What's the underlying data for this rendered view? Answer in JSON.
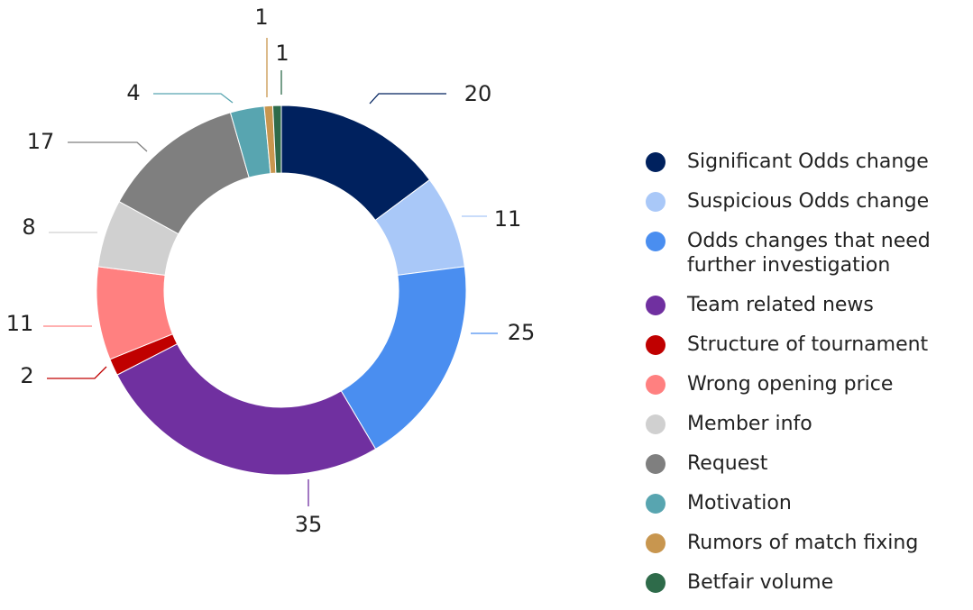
{
  "chart_data": {
    "type": "donut",
    "categories": [
      "Significant Odds change",
      "Suspicious Odds change",
      "Odds changes that need further investigation",
      "Team related news",
      "Structure of tournament",
      "Wrong opening price",
      "Member info",
      "Request",
      "Motivation",
      "Rumors of match fixing",
      "Betfair volume"
    ],
    "values": [
      20,
      11,
      25,
      35,
      2,
      11,
      8,
      17,
      4,
      1,
      1
    ],
    "colors": [
      "#00215e",
      "#a9c8f8",
      "#4a8ef0",
      "#7030a0",
      "#c00000",
      "#ff8080",
      "#d0d0d0",
      "#7f7f7f",
      "#58a5b0",
      "#c8964f",
      "#2e6b4a"
    ]
  }
}
